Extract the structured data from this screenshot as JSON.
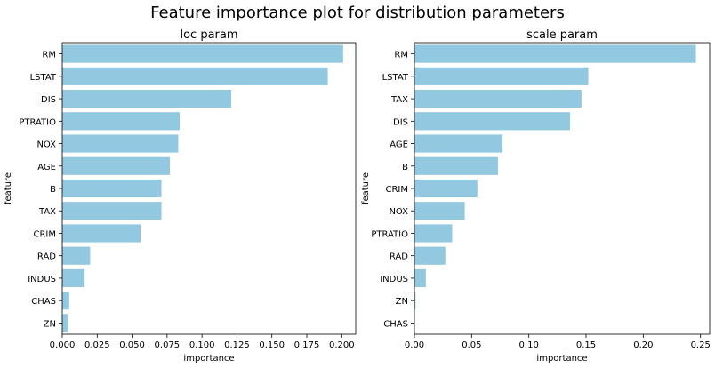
{
  "figure": {
    "title": "Feature importance plot for distribution parameters",
    "bar_color": "#92c9e0",
    "axis_color": "#000000"
  },
  "chart_data": [
    {
      "type": "bar",
      "orientation": "horizontal",
      "title": "loc param",
      "xlabel": "importance",
      "ylabel": "feature",
      "xlim": [
        0,
        0.21
      ],
      "xticks": [
        0.0,
        0.025,
        0.05,
        0.075,
        0.1,
        0.125,
        0.15,
        0.175,
        0.2
      ],
      "xtick_labels": [
        "0.000",
        "0.025",
        "0.050",
        "0.075",
        "0.100",
        "0.125",
        "0.150",
        "0.175",
        "0.200"
      ],
      "categories": [
        "RM",
        "LSTAT",
        "DIS",
        "PTRATIO",
        "NOX",
        "AGE",
        "B",
        "TAX",
        "CRIM",
        "RAD",
        "INDUS",
        "CHAS",
        "ZN"
      ],
      "values": [
        0.201,
        0.19,
        0.121,
        0.084,
        0.083,
        0.077,
        0.071,
        0.071,
        0.056,
        0.02,
        0.016,
        0.005,
        0.004
      ],
      "grid": false
    },
    {
      "type": "bar",
      "orientation": "horizontal",
      "title": "scale param",
      "xlabel": "importance",
      "ylabel": "feature",
      "xlim": [
        0,
        0.258
      ],
      "xticks": [
        0.0,
        0.05,
        0.1,
        0.15,
        0.2,
        0.25
      ],
      "xtick_labels": [
        "0.00",
        "0.05",
        "0.10",
        "0.15",
        "0.20",
        "0.25"
      ],
      "categories": [
        "RM",
        "LSTAT",
        "TAX",
        "DIS",
        "AGE",
        "B",
        "CRIM",
        "NOX",
        "PTRATIO",
        "RAD",
        "INDUS",
        "ZN",
        "CHAS"
      ],
      "values": [
        0.246,
        0.152,
        0.146,
        0.136,
        0.077,
        0.073,
        0.055,
        0.044,
        0.033,
        0.027,
        0.01,
        0.001,
        0.0
      ],
      "grid": false
    }
  ]
}
